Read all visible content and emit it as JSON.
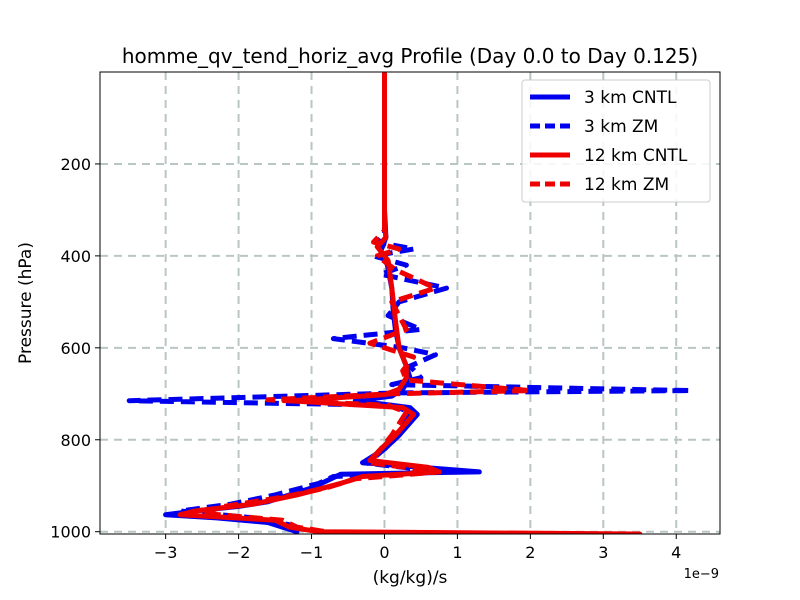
{
  "chart_data": {
    "type": "line",
    "title": "homme_qv_tend_horiz_avg Profile (Day 0.0 to Day 0.125)",
    "xlabel": "(kg/kg)/s",
    "ylabel": "Pressure (hPa)",
    "x_offset_text": "1e−9",
    "xlim": [
      -3.9,
      4.6
    ],
    "ylim": [
      1005,
      0
    ],
    "x_scale": 1e-09,
    "x_ticks": [
      -3,
      -2,
      -1,
      0,
      1,
      2,
      3,
      4
    ],
    "x_tick_labels": [
      "−3",
      "−2",
      "−1",
      "0",
      "1",
      "2",
      "3",
      "4"
    ],
    "y_ticks": [
      200,
      400,
      600,
      800,
      1000
    ],
    "y_tick_labels": [
      "200",
      "400",
      "600",
      "800",
      "1000"
    ],
    "grid": true,
    "legend_position": "upper right",
    "series": [
      {
        "name": "3 km CNTL",
        "color": "#0000ee",
        "dash": "solid",
        "points": [
          [
            0,
            0
          ],
          [
            0,
            300
          ],
          [
            0.02,
            360
          ],
          [
            -0.05,
            390
          ],
          [
            0.04,
            420
          ],
          [
            0.1,
            470
          ],
          [
            0.12,
            520
          ],
          [
            0.15,
            560
          ],
          [
            0.2,
            600
          ],
          [
            0.3,
            640
          ],
          [
            0.35,
            665
          ],
          [
            0.25,
            690
          ],
          [
            0.1,
            705
          ],
          [
            -0.4,
            715
          ],
          [
            0.35,
            730
          ],
          [
            0.45,
            745
          ],
          [
            0.2,
            790
          ],
          [
            0,
            820
          ],
          [
            -0.2,
            840
          ],
          [
            -0.3,
            850
          ],
          [
            0.5,
            860
          ],
          [
            1.3,
            870
          ],
          [
            -0.6,
            875
          ],
          [
            -0.8,
            890
          ],
          [
            -1.0,
            905
          ],
          [
            -1.3,
            920
          ],
          [
            -1.6,
            935
          ],
          [
            -2.0,
            945
          ],
          [
            -2.6,
            955
          ],
          [
            -3.0,
            963
          ],
          [
            -2.3,
            970
          ],
          [
            -1.6,
            980
          ],
          [
            -1.4,
            990
          ],
          [
            -1.2,
            1000
          ]
        ]
      },
      {
        "name": "3 km ZM",
        "color": "#0000ee",
        "dash": "dashed",
        "points": [
          [
            0,
            0
          ],
          [
            0,
            350
          ],
          [
            -0.1,
            370
          ],
          [
            0.4,
            385
          ],
          [
            -0.15,
            400
          ],
          [
            0.3,
            420
          ],
          [
            -0.05,
            440
          ],
          [
            0.85,
            470
          ],
          [
            0.2,
            500
          ],
          [
            0.05,
            530
          ],
          [
            0.5,
            560
          ],
          [
            -0.7,
            580
          ],
          [
            0.25,
            600
          ],
          [
            0.7,
            615
          ],
          [
            0.35,
            640
          ],
          [
            0.5,
            665
          ],
          [
            0.1,
            680
          ],
          [
            4.2,
            693
          ],
          [
            0.2,
            698
          ],
          [
            -3.5,
            715
          ],
          [
            0.1,
            725
          ],
          [
            0.35,
            740
          ],
          [
            0.2,
            790
          ],
          [
            0,
            820
          ],
          [
            -0.15,
            840
          ],
          [
            -0.3,
            850
          ],
          [
            0.8,
            870
          ],
          [
            -0.7,
            880
          ],
          [
            -0.9,
            895
          ],
          [
            -1.5,
            920
          ],
          [
            -2.1,
            940
          ],
          [
            -2.8,
            955
          ],
          [
            -1.8,
            970
          ],
          [
            -1.3,
            985
          ],
          [
            -1.2,
            1000
          ]
        ]
      },
      {
        "name": "12 km CNTL",
        "color": "#ee0000",
        "dash": "solid",
        "points": [
          [
            0,
            0
          ],
          [
            0,
            330
          ],
          [
            0.02,
            360
          ],
          [
            -0.1,
            380
          ],
          [
            0.05,
            410
          ],
          [
            0.1,
            470
          ],
          [
            0.15,
            540
          ],
          [
            0.2,
            600
          ],
          [
            0.3,
            640
          ],
          [
            0.3,
            665
          ],
          [
            0.2,
            690
          ],
          [
            0,
            702
          ],
          [
            -1.3,
            715
          ],
          [
            0.25,
            730
          ],
          [
            0.4,
            745
          ],
          [
            0.15,
            790
          ],
          [
            -0.05,
            820
          ],
          [
            -0.2,
            845
          ],
          [
            0.6,
            860
          ],
          [
            0.75,
            870
          ],
          [
            -0.3,
            880
          ],
          [
            -0.6,
            895
          ],
          [
            -1.2,
            920
          ],
          [
            -1.8,
            940
          ],
          [
            -2.6,
            955
          ],
          [
            -2.8,
            963
          ],
          [
            -1.5,
            975
          ],
          [
            -1.3,
            990
          ],
          [
            -0.9,
            1000
          ],
          [
            3.5,
            1005
          ]
        ]
      },
      {
        "name": "12 km ZM",
        "color": "#ee0000",
        "dash": "dashed",
        "points": [
          [
            0,
            0
          ],
          [
            0,
            345
          ],
          [
            -0.15,
            370
          ],
          [
            0.2,
            385
          ],
          [
            -0.1,
            400
          ],
          [
            0.15,
            430
          ],
          [
            0.7,
            470
          ],
          [
            0.1,
            500
          ],
          [
            0.3,
            560
          ],
          [
            -0.2,
            590
          ],
          [
            0.4,
            620
          ],
          [
            0.25,
            650
          ],
          [
            0.3,
            670
          ],
          [
            2.0,
            693
          ],
          [
            0.1,
            700
          ],
          [
            -1.6,
            713
          ],
          [
            0.05,
            725
          ],
          [
            0.3,
            740
          ],
          [
            0.1,
            790
          ],
          [
            -0.1,
            830
          ],
          [
            -0.2,
            850
          ],
          [
            0.75,
            870
          ],
          [
            -0.4,
            885
          ],
          [
            -0.8,
            905
          ],
          [
            -1.4,
            925
          ],
          [
            -2.2,
            945
          ],
          [
            -2.5,
            960
          ],
          [
            -1.4,
            975
          ],
          [
            -1.2,
            990
          ],
          [
            -0.8,
            1000
          ]
        ]
      }
    ]
  }
}
